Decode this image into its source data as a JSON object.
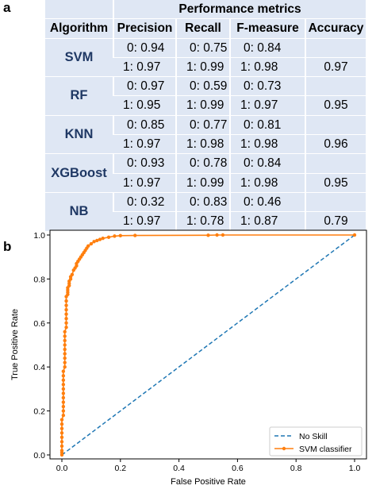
{
  "panel_labels": {
    "a": "a",
    "b": "b"
  },
  "table": {
    "group_header": "Performance metrics",
    "columns": [
      "Algorithm",
      "Precision",
      "Recall",
      "F-measure",
      "Accuracy"
    ],
    "rows": [
      {
        "algorithm": "SVM",
        "precision": [
          "0: 0.94",
          "1: 0.97"
        ],
        "recall": [
          "0: 0.75",
          "1: 0.99"
        ],
        "fmeasure": [
          "0: 0.84",
          "1: 0.98"
        ],
        "accuracy": "0.97"
      },
      {
        "algorithm": "RF",
        "precision": [
          "0: 0.97",
          "1: 0.95"
        ],
        "recall": [
          "0: 0.59",
          "1: 0.99"
        ],
        "fmeasure": [
          "0: 0.73",
          "1: 0.97"
        ],
        "accuracy": "0.95"
      },
      {
        "algorithm": "KNN",
        "precision": [
          "0: 0.85",
          "1: 0.97"
        ],
        "recall": [
          "0: 0.77",
          "1: 0.98"
        ],
        "fmeasure": [
          "0: 0.81",
          "1: 0.98"
        ],
        "accuracy": "0.96"
      },
      {
        "algorithm": "XGBoost",
        "precision": [
          "0: 0.93",
          "1: 0.97"
        ],
        "recall": [
          "0: 0.78",
          "1: 0.99"
        ],
        "fmeasure": [
          "0: 0.84",
          "1: 0.98"
        ],
        "accuracy": "0.95"
      },
      {
        "algorithm": "NB",
        "precision": [
          "0: 0.32",
          "1: 0.97"
        ],
        "recall": [
          "0: 0.83",
          "1: 0.78"
        ],
        "fmeasure": [
          "0: 0.46",
          "1: 0.87"
        ],
        "accuracy": "0.79"
      }
    ]
  },
  "chart_data": {
    "type": "line",
    "xlabel": "False Positive Rate",
    "ylabel": "True Positive Rate",
    "xlim": [
      0.0,
      1.0
    ],
    "ylim": [
      0.0,
      1.0
    ],
    "xticks": [
      "0.0",
      "0.2",
      "0.4",
      "0.6",
      "0.8",
      "1.0"
    ],
    "yticks": [
      "0.0",
      "0.2",
      "0.4",
      "0.6",
      "0.8",
      "1.0"
    ],
    "grid": false,
    "legend_position": "lower-right",
    "series": [
      {
        "name": "No Skill",
        "style": "dashed",
        "color": "#1f77b4",
        "x": [
          0.0,
          1.0
        ],
        "y": [
          0.0,
          1.0
        ]
      },
      {
        "name": "SVM classifier",
        "style": "solid-with-markers",
        "color": "#ff7f0e",
        "x": [
          0.0,
          0.0,
          0.0,
          0.0,
          0.0,
          0.0,
          0.0,
          0.0,
          0.0,
          0.0,
          0.005,
          0.005,
          0.005,
          0.005,
          0.005,
          0.005,
          0.005,
          0.005,
          0.005,
          0.005,
          0.005,
          0.01,
          0.01,
          0.01,
          0.01,
          0.01,
          0.01,
          0.01,
          0.01,
          0.01,
          0.015,
          0.015,
          0.015,
          0.015,
          0.015,
          0.015,
          0.015,
          0.015,
          0.02,
          0.02,
          0.02,
          0.02,
          0.025,
          0.025,
          0.025,
          0.03,
          0.03,
          0.035,
          0.04,
          0.045,
          0.05,
          0.05,
          0.055,
          0.06,
          0.065,
          0.07,
          0.075,
          0.08,
          0.085,
          0.09,
          0.1,
          0.11,
          0.12,
          0.13,
          0.14,
          0.16,
          0.18,
          0.2,
          0.25,
          0.5,
          0.53,
          0.55,
          1.0
        ],
        "y": [
          0.0,
          0.01,
          0.02,
          0.04,
          0.06,
          0.08,
          0.1,
          0.12,
          0.14,
          0.16,
          0.18,
          0.2,
          0.22,
          0.24,
          0.26,
          0.28,
          0.3,
          0.32,
          0.34,
          0.36,
          0.38,
          0.4,
          0.42,
          0.44,
          0.46,
          0.48,
          0.5,
          0.52,
          0.54,
          0.56,
          0.58,
          0.6,
          0.62,
          0.64,
          0.66,
          0.68,
          0.7,
          0.72,
          0.73,
          0.74,
          0.75,
          0.76,
          0.77,
          0.78,
          0.79,
          0.8,
          0.81,
          0.82,
          0.84,
          0.85,
          0.86,
          0.87,
          0.88,
          0.89,
          0.9,
          0.91,
          0.92,
          0.93,
          0.94,
          0.95,
          0.96,
          0.97,
          0.975,
          0.98,
          0.985,
          0.99,
          0.995,
          0.997,
          0.998,
          0.999,
          1.0,
          1.0,
          1.0
        ]
      }
    ]
  }
}
